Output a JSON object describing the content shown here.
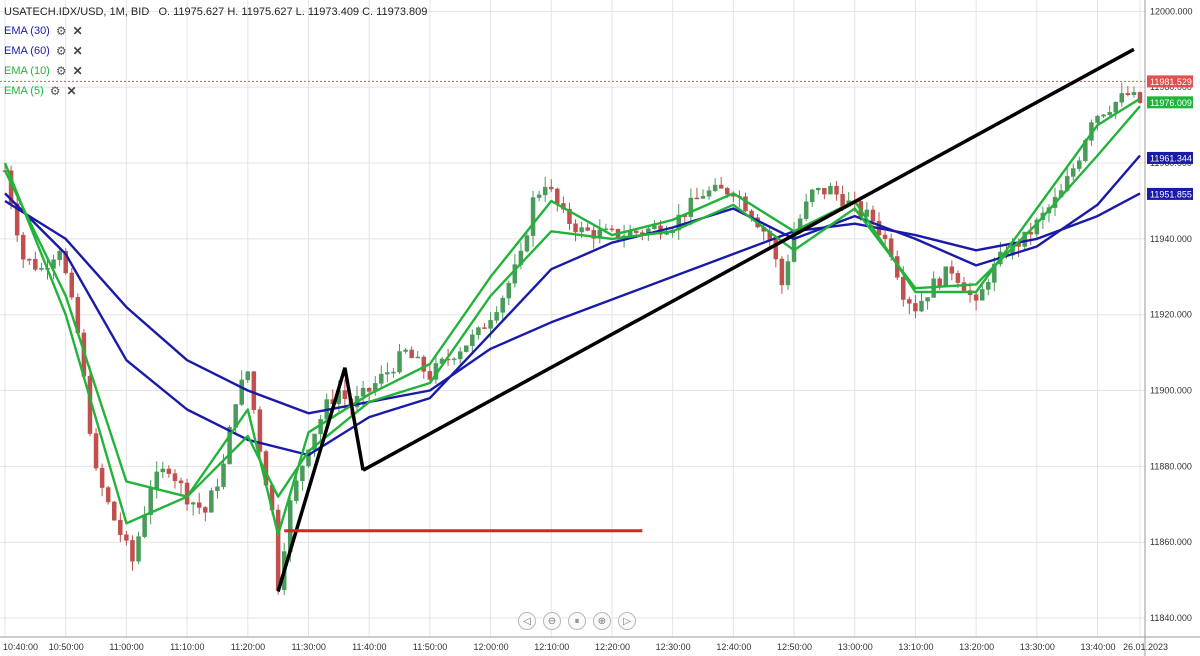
{
  "header": {
    "symbol": "USATECH.IDX/USD, 1M, BID",
    "ohlc": "O. 11975.627 H. 11975.627 L. 11973.409 C. 11973.809"
  },
  "indicators": [
    {
      "label": "EMA (30)",
      "color": "#1a1aa8"
    },
    {
      "label": "EMA (60)",
      "color": "#1a1aa8"
    },
    {
      "label": "EMA (10)",
      "color": "#22b33a"
    },
    {
      "label": "EMA (5)",
      "color": "#22b33a"
    }
  ],
  "icons": {
    "settings": "gear-icon",
    "remove": "close-icon"
  },
  "nav_icons": [
    "scroll-left-icon",
    "zoom-out-icon",
    "reset-icon",
    "zoom-in-icon",
    "scroll-right-icon"
  ],
  "chart_data": {
    "type": "candlestick",
    "ylim": [
      11835,
      12003
    ],
    "y_ticks": [
      12000,
      11980,
      11960,
      11940,
      11920,
      11900,
      11880,
      11860,
      11840
    ],
    "y_tick_labels": [
      "12000.000",
      "11980.000",
      "11960.000",
      "11940.000",
      "11920.000",
      "11900.000",
      "11880.000",
      "11860.000",
      "11840.000"
    ],
    "x_range": [
      "10:40",
      "13:47"
    ],
    "x_ticks": [
      "10:40",
      "10:50",
      "11:00",
      "11:10",
      "11:20",
      "11:30",
      "11:40",
      "11:50",
      "12:00",
      "12:10",
      "12:20",
      "12:30",
      "12:40",
      "12:50",
      "13:00",
      "13:10",
      "13:20",
      "13:30",
      "13:40",
      "13:47"
    ],
    "x_tick_labels": [
      "10:40:00",
      "10:50:00",
      "11:00:00",
      "11:10:00",
      "11:20:00",
      "11:30:00",
      "11:40:00",
      "11:50:00",
      "12:00:00",
      "12:10:00",
      "12:20:00",
      "12:30:00",
      "12:40:00",
      "12:50:00",
      "13:00:00",
      "13:10:00",
      "13:20:00",
      "13:30:00",
      "13:40:00",
      "26.01.2023"
    ],
    "close_path": [
      [
        "10:40",
        11958
      ],
      [
        "10:43",
        11935
      ],
      [
        "10:46",
        11932
      ],
      [
        "10:49",
        11938
      ],
      [
        "10:52",
        11915
      ],
      [
        "10:55",
        11878
      ],
      [
        "10:58",
        11866
      ],
      [
        "11:01",
        11855
      ],
      [
        "11:04",
        11875
      ],
      [
        "11:07",
        11880
      ],
      [
        "11:10",
        11872
      ],
      [
        "11:13",
        11868
      ],
      [
        "11:16",
        11880
      ],
      [
        "11:18",
        11898
      ],
      [
        "11:20",
        11905
      ],
      [
        "11:22",
        11885
      ],
      [
        "11:24",
        11868
      ],
      [
        "11:25",
        11849
      ],
      [
        "11:27",
        11870
      ],
      [
        "11:30",
        11886
      ],
      [
        "11:33",
        11896
      ],
      [
        "11:35",
        11900
      ],
      [
        "11:37",
        11896
      ],
      [
        "11:40",
        11900
      ],
      [
        "11:43",
        11905
      ],
      [
        "11:46",
        11910
      ],
      [
        "11:50",
        11904
      ],
      [
        "11:54",
        11910
      ],
      [
        "11:58",
        11915
      ],
      [
        "12:02",
        11925
      ],
      [
        "12:05",
        11935
      ],
      [
        "12:07",
        11950
      ],
      [
        "12:09",
        11955
      ],
      [
        "12:12",
        11946
      ],
      [
        "12:15",
        11942
      ],
      [
        "12:20",
        11941
      ],
      [
        "12:25",
        11942
      ],
      [
        "12:30",
        11944
      ],
      [
        "12:35",
        11952
      ],
      [
        "12:40",
        11953
      ],
      [
        "12:43",
        11947
      ],
      [
        "12:46",
        11940
      ],
      [
        "12:48",
        11928
      ],
      [
        "12:50",
        11942
      ],
      [
        "12:53",
        11952
      ],
      [
        "12:56",
        11953
      ],
      [
        "13:00",
        11948
      ],
      [
        "13:03",
        11945
      ],
      [
        "13:06",
        11937
      ],
      [
        "13:08",
        11926
      ],
      [
        "13:10",
        11922
      ],
      [
        "13:13",
        11928
      ],
      [
        "13:16",
        11932
      ],
      [
        "13:18",
        11928
      ],
      [
        "13:20",
        11922
      ],
      [
        "13:22",
        11930
      ],
      [
        "13:25",
        11937
      ],
      [
        "13:28",
        11940
      ],
      [
        "13:31",
        11946
      ],
      [
        "13:34",
        11952
      ],
      [
        "13:37",
        11962
      ],
      [
        "13:39",
        11972
      ],
      [
        "13:42",
        11975
      ],
      [
        "13:45",
        11978
      ],
      [
        "13:47",
        11976
      ]
    ],
    "ema_lines": [
      {
        "label": "EMA (60)",
        "color": "#1a1aa8",
        "points": [
          [
            "10:40",
            11950
          ],
          [
            "10:50",
            11940
          ],
          [
            "11:00",
            11922
          ],
          [
            "11:10",
            11908
          ],
          [
            "11:20",
            11900
          ],
          [
            "11:30",
            11894
          ],
          [
            "11:40",
            11897
          ],
          [
            "11:50",
            11900
          ],
          [
            "12:00",
            11911
          ],
          [
            "12:10",
            11918
          ],
          [
            "12:20",
            11924
          ],
          [
            "12:30",
            11930
          ],
          [
            "12:40",
            11936
          ],
          [
            "12:50",
            11942
          ],
          [
            "13:00",
            11944
          ],
          [
            "13:10",
            11941
          ],
          [
            "13:20",
            11937
          ],
          [
            "13:30",
            11940
          ],
          [
            "13:40",
            11946
          ],
          [
            "13:47",
            11952
          ]
        ]
      },
      {
        "label": "EMA (30)",
        "color": "#1a1aa8",
        "points": [
          [
            "10:40",
            11952
          ],
          [
            "10:50",
            11936
          ],
          [
            "11:00",
            11908
          ],
          [
            "11:10",
            11895
          ],
          [
            "11:20",
            11887
          ],
          [
            "11:30",
            11883
          ],
          [
            "11:40",
            11893
          ],
          [
            "11:50",
            11898
          ],
          [
            "12:00",
            11915
          ],
          [
            "12:10",
            11932
          ],
          [
            "12:20",
            11939
          ],
          [
            "12:30",
            11943
          ],
          [
            "12:40",
            11948
          ],
          [
            "12:50",
            11940
          ],
          [
            "13:00",
            11946
          ],
          [
            "13:10",
            11940
          ],
          [
            "13:20",
            11933
          ],
          [
            "13:30",
            11938
          ],
          [
            "13:40",
            11949
          ],
          [
            "13:47",
            11962
          ]
        ]
      },
      {
        "label": "EMA (10)",
        "color": "#22b33a",
        "points": [
          [
            "10:40",
            11958
          ],
          [
            "10:50",
            11925
          ],
          [
            "11:00",
            11876
          ],
          [
            "11:10",
            11872
          ],
          [
            "11:20",
            11888
          ],
          [
            "11:25",
            11872
          ],
          [
            "11:30",
            11884
          ],
          [
            "11:40",
            11897
          ],
          [
            "11:50",
            11902
          ],
          [
            "12:00",
            11925
          ],
          [
            "12:10",
            11942
          ],
          [
            "12:20",
            11940
          ],
          [
            "12:30",
            11942
          ],
          [
            "12:40",
            11949
          ],
          [
            "12:50",
            11937
          ],
          [
            "13:00",
            11948
          ],
          [
            "13:10",
            11927
          ],
          [
            "13:20",
            11928
          ],
          [
            "13:30",
            11944
          ],
          [
            "13:40",
            11962
          ],
          [
            "13:47",
            11975
          ]
        ]
      },
      {
        "label": "EMA (5)",
        "color": "#22b33a",
        "points": [
          [
            "10:40",
            11960
          ],
          [
            "10:50",
            11920
          ],
          [
            "11:00",
            11865
          ],
          [
            "11:10",
            11872
          ],
          [
            "11:20",
            11895
          ],
          [
            "11:25",
            11862
          ],
          [
            "11:30",
            11889
          ],
          [
            "11:40",
            11899
          ],
          [
            "11:50",
            11907
          ],
          [
            "12:00",
            11930
          ],
          [
            "12:10",
            11950
          ],
          [
            "12:20",
            11941
          ],
          [
            "12:30",
            11945
          ],
          [
            "12:40",
            11952
          ],
          [
            "12:50",
            11942
          ],
          [
            "13:00",
            11950
          ],
          [
            "13:10",
            11926
          ],
          [
            "13:20",
            11926
          ],
          [
            "13:30",
            11948
          ],
          [
            "13:40",
            11970
          ],
          [
            "13:47",
            11977
          ]
        ]
      }
    ],
    "drawings": [
      {
        "kind": "zigzag",
        "color": "#000000",
        "points": [
          [
            "11:25",
            11847
          ],
          [
            "11:36",
            11906
          ],
          [
            "11:39",
            11879
          ]
        ]
      },
      {
        "kind": "trendline",
        "color": "#000000",
        "points": [
          [
            "11:39",
            11879
          ],
          [
            "13:46",
            11990
          ]
        ]
      },
      {
        "kind": "horizontal",
        "color": "#e02020",
        "points": [
          [
            "11:26",
            11863
          ],
          [
            "12:25",
            11863
          ]
        ]
      }
    ],
    "price_line": {
      "value": 11981.529,
      "color": "#e05050"
    },
    "price_tags": [
      {
        "label": "11981.529",
        "value": 11981.529,
        "color": "#e05050"
      },
      {
        "label": "11976.009",
        "value": 11976.009,
        "color": "#22b33a"
      },
      {
        "label": "11961.344",
        "value": 11961.344,
        "color": "#1a1aa8"
      },
      {
        "label": "11951.855",
        "value": 11951.855,
        "color": "#1a1aa8"
      }
    ],
    "colors": {
      "up": "#4a9a5a",
      "down": "#c0504d",
      "grid": "#e4e4e4"
    },
    "grid": true
  }
}
